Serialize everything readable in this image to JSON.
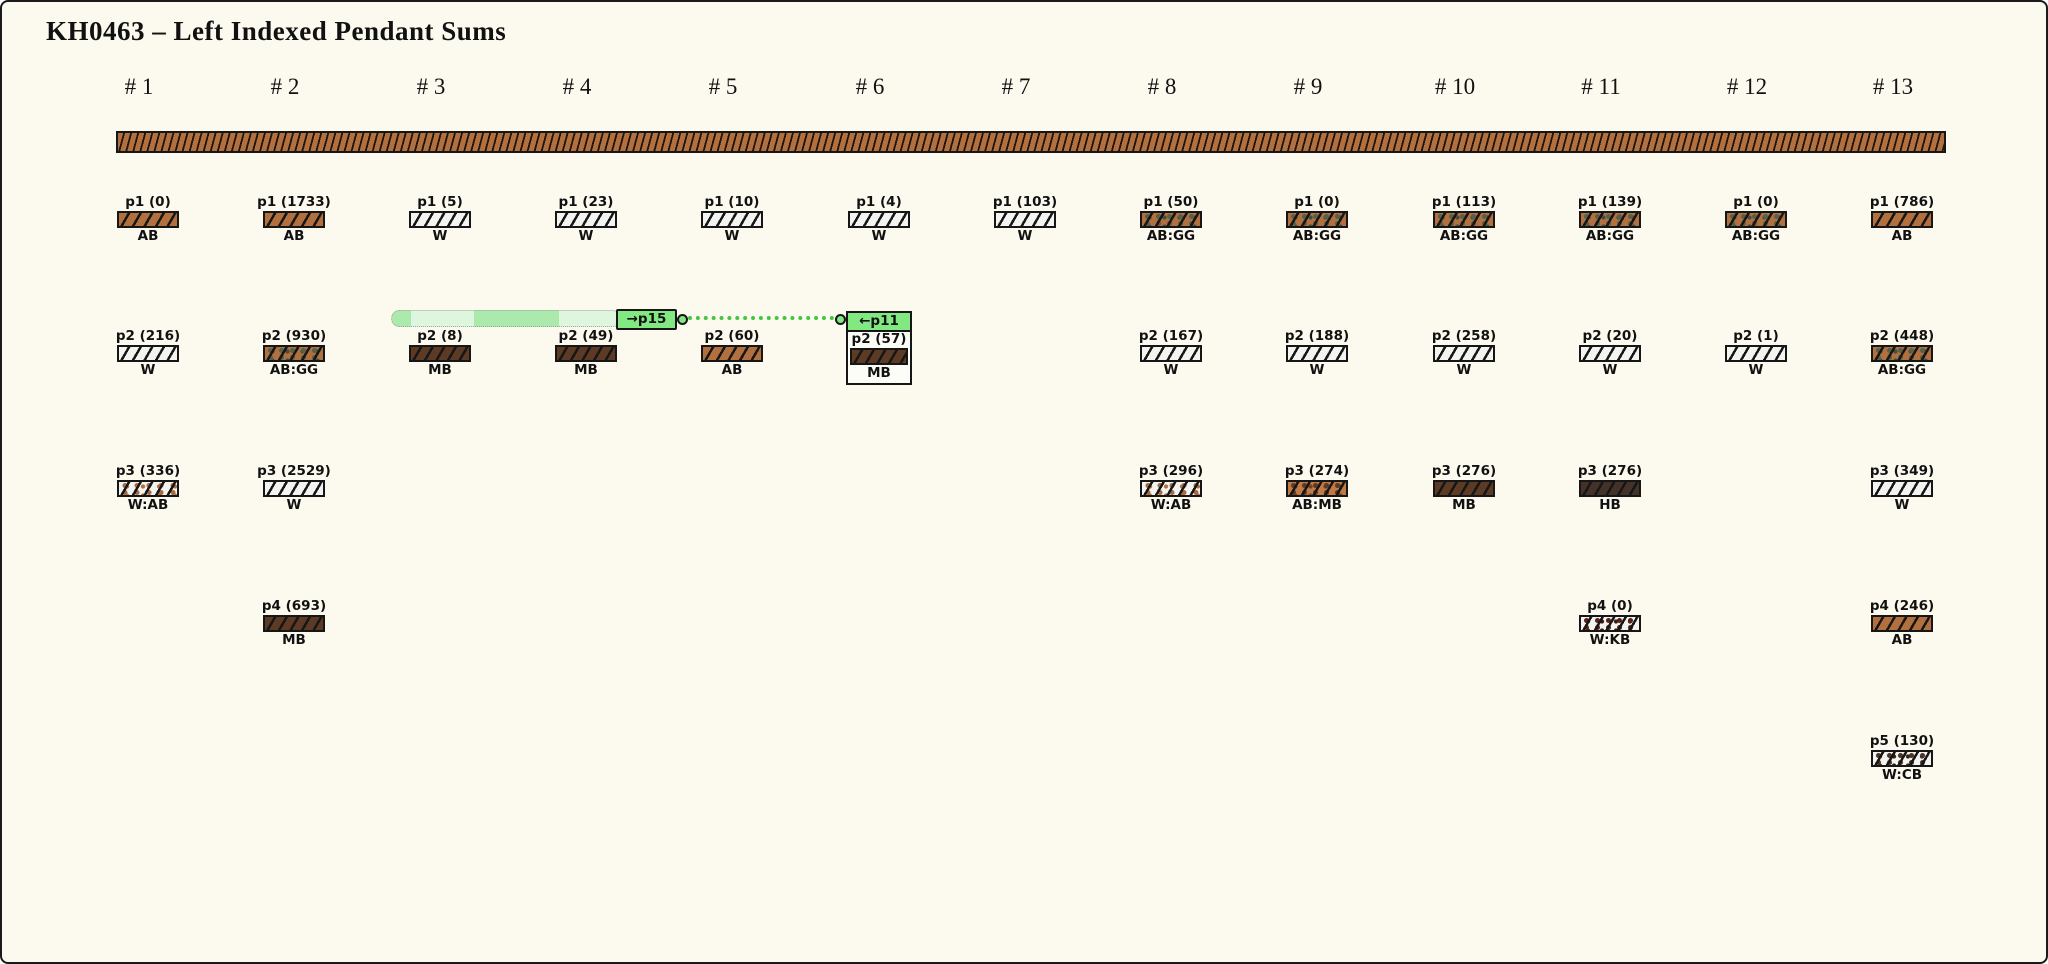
{
  "title": "KH0463 – Left Indexed Pendant Sums",
  "columns": [
    "# 1",
    "# 2",
    "# 3",
    "# 4",
    "# 5",
    "# 6",
    "# 7",
    "# 8",
    "# 9",
    "# 10",
    "# 11",
    "# 12",
    "# 13"
  ],
  "link": {
    "out_label": "→p15",
    "in_label": "←p11",
    "accent_green": "#82e882",
    "band_pale": "#def6de",
    "band_mid": "#ace9ac",
    "dot_line_color": "#44c544"
  },
  "cord_color": "#b2703f",
  "background_color": "#fcfaef",
  "material_colors": {
    "AB": "#b2703f",
    "MB": "#5c3a24",
    "HB": "#443128",
    "W": "#f3f3ef",
    "AB:GG": "#b2703f",
    "W:AB": "#f3f3ef",
    "AB:MB": "#c07a45",
    "W:KB": "#f3f3ef",
    "W:CB": "#f3f3ef"
  },
  "pendants": [
    {
      "col": 1,
      "row": 1,
      "p": "p1",
      "value": 0,
      "material": "AB"
    },
    {
      "col": 1,
      "row": 2,
      "p": "p2",
      "value": 216,
      "material": "W"
    },
    {
      "col": 1,
      "row": 3,
      "p": "p3",
      "value": 336,
      "material": "W:AB"
    },
    {
      "col": 2,
      "row": 1,
      "p": "p1",
      "value": 1733,
      "material": "AB"
    },
    {
      "col": 2,
      "row": 2,
      "p": "p2",
      "value": 930,
      "material": "AB:GG"
    },
    {
      "col": 2,
      "row": 3,
      "p": "p3",
      "value": 2529,
      "material": "W"
    },
    {
      "col": 2,
      "row": 4,
      "p": "p4",
      "value": 693,
      "material": "MB"
    },
    {
      "col": 3,
      "row": 1,
      "p": "p1",
      "value": 5,
      "material": "W"
    },
    {
      "col": 3,
      "row": 2,
      "p": "p2",
      "value": 8,
      "material": "MB"
    },
    {
      "col": 4,
      "row": 1,
      "p": "p1",
      "value": 23,
      "material": "W"
    },
    {
      "col": 4,
      "row": 2,
      "p": "p2",
      "value": 49,
      "material": "MB"
    },
    {
      "col": 5,
      "row": 1,
      "p": "p1",
      "value": 10,
      "material": "W"
    },
    {
      "col": 5,
      "row": 2,
      "p": "p2",
      "value": 60,
      "material": "AB"
    },
    {
      "col": 6,
      "row": 1,
      "p": "p1",
      "value": 4,
      "material": "W"
    },
    {
      "col": 6,
      "row": 2,
      "p": "p2",
      "value": 57,
      "material": "MB",
      "boxed": true
    },
    {
      "col": 7,
      "row": 1,
      "p": "p1",
      "value": 103,
      "material": "W"
    },
    {
      "col": 8,
      "row": 1,
      "p": "p1",
      "value": 50,
      "material": "AB:GG"
    },
    {
      "col": 8,
      "row": 2,
      "p": "p2",
      "value": 167,
      "material": "W"
    },
    {
      "col": 8,
      "row": 3,
      "p": "p3",
      "value": 296,
      "material": "W:AB"
    },
    {
      "col": 9,
      "row": 1,
      "p": "p1",
      "value": 0,
      "material": "AB:GG"
    },
    {
      "col": 9,
      "row": 2,
      "p": "p2",
      "value": 188,
      "material": "W"
    },
    {
      "col": 9,
      "row": 3,
      "p": "p3",
      "value": 274,
      "material": "AB:MB"
    },
    {
      "col": 10,
      "row": 1,
      "p": "p1",
      "value": 113,
      "material": "AB:GG"
    },
    {
      "col": 10,
      "row": 2,
      "p": "p2",
      "value": 258,
      "material": "W"
    },
    {
      "col": 10,
      "row": 3,
      "p": "p3",
      "value": 276,
      "material": "MB"
    },
    {
      "col": 11,
      "row": 1,
      "p": "p1",
      "value": 139,
      "material": "AB:GG"
    },
    {
      "col": 11,
      "row": 2,
      "p": "p2",
      "value": 20,
      "material": "W"
    },
    {
      "col": 11,
      "row": 3,
      "p": "p3",
      "value": 276,
      "material": "HB"
    },
    {
      "col": 11,
      "row": 4,
      "p": "p4",
      "value": 0,
      "material": "W:KB"
    },
    {
      "col": 12,
      "row": 1,
      "p": "p1",
      "value": 0,
      "material": "AB:GG"
    },
    {
      "col": 12,
      "row": 2,
      "p": "p2",
      "value": 1,
      "material": "W"
    },
    {
      "col": 13,
      "row": 1,
      "p": "p1",
      "value": 786,
      "material": "AB"
    },
    {
      "col": 13,
      "row": 2,
      "p": "p2",
      "value": 448,
      "material": "AB:GG"
    },
    {
      "col": 13,
      "row": 3,
      "p": "p3",
      "value": 349,
      "material": "W"
    },
    {
      "col": 13,
      "row": 4,
      "p": "p4",
      "value": 246,
      "material": "AB"
    },
    {
      "col": 13,
      "row": 5,
      "p": "p5",
      "value": 130,
      "material": "W:CB"
    }
  ]
}
